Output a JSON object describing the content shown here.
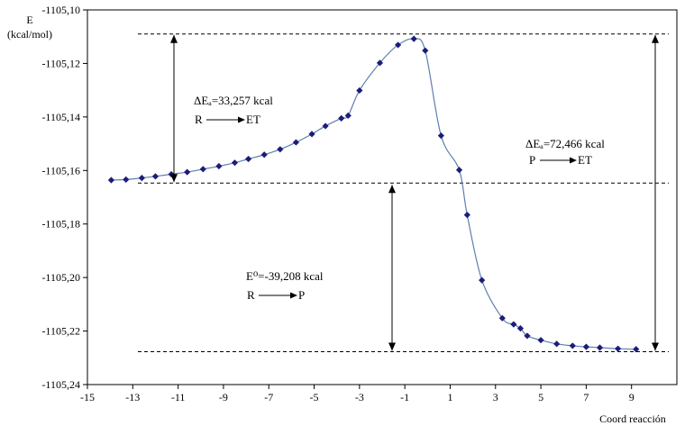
{
  "chart_data": {
    "type": "scatter",
    "title": "",
    "ylabel_line1": "E",
    "ylabel_line2": "(kcal/mol)",
    "xlabel": "Coord reacción",
    "xlim": [
      -15,
      11
    ],
    "ylim": [
      -1105.24,
      -1105.1
    ],
    "xticks": [
      -15,
      -13,
      -11,
      -9,
      -7,
      -5,
      -3,
      -1,
      1,
      3,
      5,
      7,
      9
    ],
    "xtick_labels": [
      "-15",
      "-13",
      "-11",
      "-9",
      "-7",
      "-5",
      "-3",
      "-1",
      "1",
      "3",
      "5",
      "7",
      "9"
    ],
    "yticks": [
      -1105.1,
      -1105.12,
      -1105.14,
      -1105.16,
      -1105.18,
      -1105.2,
      -1105.22,
      -1105.24
    ],
    "ytick_labels": [
      "-1105,10",
      "-1105,12",
      "-1105,14",
      "-1105,16",
      "-1105,18",
      "-1105,20",
      "-1105,22",
      "-1105,24"
    ],
    "grid": false,
    "marker_color": "#1c1c7a",
    "line_color": "#5f7fb0",
    "reference_levels": [
      -1105.109,
      -1105.1647,
      -1105.2277
    ],
    "series": [
      {
        "x": [
          -13.95,
          -13.3,
          -12.6,
          -12.0,
          -11.3,
          -10.6,
          -9.9,
          -9.2,
          -8.5,
          -7.9,
          -7.2,
          -6.5,
          -5.8,
          -5.1,
          -4.5,
          -3.8,
          -3.5,
          -3.0,
          -2.1,
          -1.3,
          -0.6,
          -0.1,
          0.6,
          1.4,
          1.75,
          2.4,
          3.3,
          3.8,
          4.1,
          4.4,
          5.0,
          5.7,
          6.4,
          7.0,
          7.6,
          8.4,
          9.2
        ],
        "y": [
          -1105.1636,
          -1105.1634,
          -1105.1628,
          -1105.1622,
          -1105.1614,
          -1105.1606,
          -1105.1595,
          -1105.1584,
          -1105.1571,
          -1105.1557,
          -1105.1541,
          -1105.1521,
          -1105.1495,
          -1105.1464,
          -1105.1434,
          -1105.1405,
          -1105.1395,
          -1105.1301,
          -1105.1198,
          -1105.1131,
          -1105.1108,
          -1105.1152,
          -1105.147,
          -1105.1598,
          -1105.1766,
          -1105.201,
          -1105.2152,
          -1105.2175,
          -1105.219,
          -1105.2218,
          -1105.2234,
          -1105.2248,
          -1105.2255,
          -1105.2259,
          -1105.2262,
          -1105.2266,
          -1105.2268
        ]
      }
    ],
    "annotations": {
      "ea_forward_line1": "ΔEₐ=33,257 kcal",
      "ea_forward_line2_from": "R",
      "ea_forward_line2_to": "ET",
      "ea_reverse_line1": "ΔEₐ=72,466 kcal",
      "ea_reverse_line2_from": "P",
      "ea_reverse_line2_to": "ET",
      "e0_line1": "E⁰=-39,208 kcal",
      "e0_line2_from": "R",
      "e0_line2_to": "P"
    }
  }
}
